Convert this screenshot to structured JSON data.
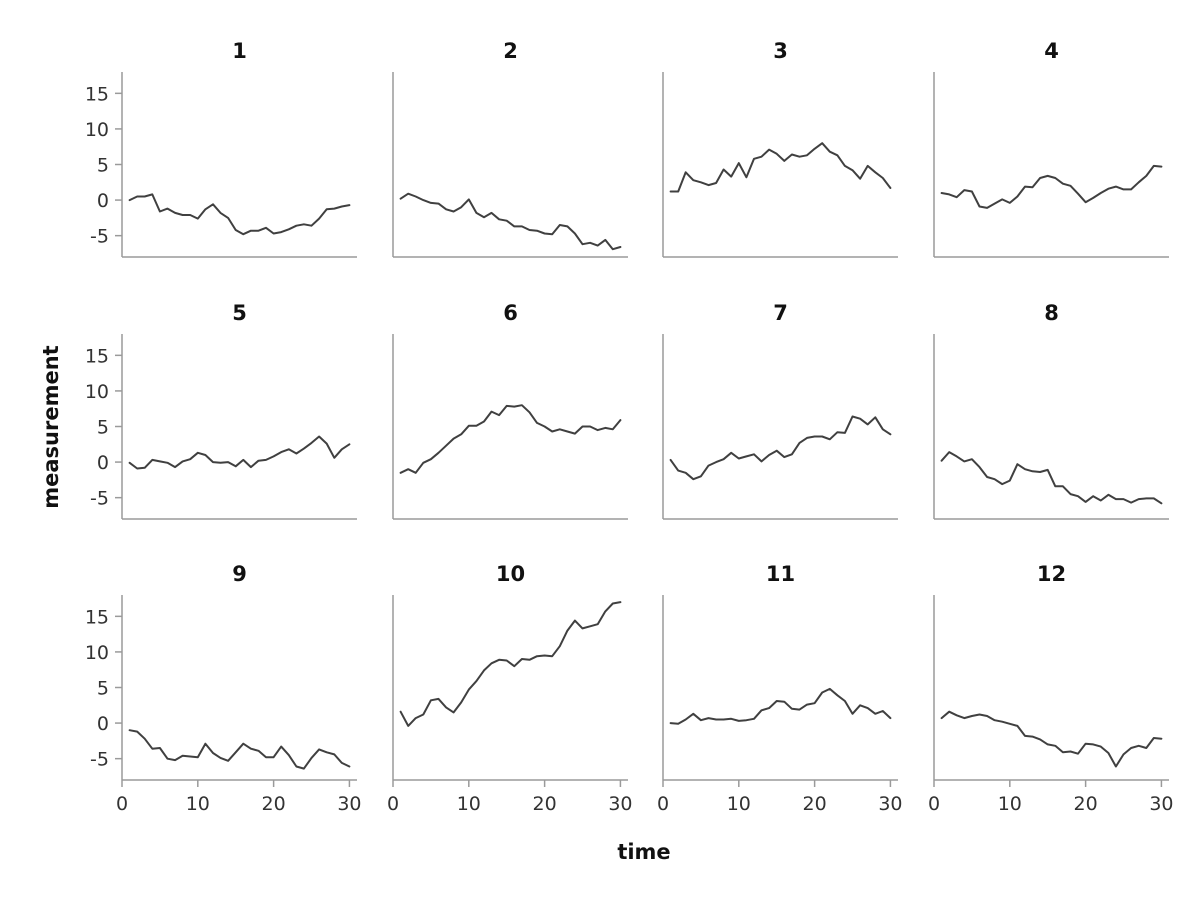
{
  "chart_data": {
    "type": "line",
    "layout": "facet-grid",
    "nrows": 3,
    "ncols": 4,
    "xlabel": "time",
    "ylabel": "measurement",
    "xlim": [
      0,
      31
    ],
    "ylim": [
      -8,
      18
    ],
    "xticks": [
      0,
      10,
      20,
      30
    ],
    "yticks": [
      -5,
      0,
      5,
      10,
      15
    ],
    "grid": false,
    "line_color": "#404040",
    "x": [
      1,
      2,
      3,
      4,
      5,
      6,
      7,
      8,
      9,
      10,
      11,
      12,
      13,
      14,
      15,
      16,
      17,
      18,
      19,
      20,
      21,
      22,
      23,
      24,
      25,
      26,
      27,
      28,
      29,
      30
    ],
    "panels": [
      {
        "title": "1",
        "values": [
          0,
          0.5,
          0.5,
          0.8,
          -1.6,
          -1.2,
          -1.8,
          -2.1,
          -2.1,
          -2.6,
          -1.3,
          -0.6,
          -1.8,
          -2.5,
          -4.2,
          -4.8,
          -4.3,
          -4.3,
          -3.9,
          -4.7,
          -4.5,
          -4.1,
          -3.6,
          -3.4,
          -3.6,
          -2.6,
          -1.3,
          -1.2,
          -0.9,
          -0.7
        ]
      },
      {
        "title": "2",
        "values": [
          0.2,
          0.9,
          0.5,
          0,
          -0.4,
          -0.5,
          -1.3,
          -1.6,
          -1,
          0.1,
          -1.8,
          -2.4,
          -1.8,
          -2.7,
          -2.9,
          -3.7,
          -3.7,
          -4.2,
          -4.3,
          -4.7,
          -4.8,
          -3.5,
          -3.7,
          -4.7,
          -6.2,
          -6,
          -6.4,
          -5.6,
          -6.9,
          -6.6
        ]
      },
      {
        "title": "3",
        "values": [
          1.2,
          1.2,
          3.9,
          2.8,
          2.5,
          2.1,
          2.4,
          4.3,
          3.3,
          5.2,
          3.2,
          5.8,
          6.1,
          7.1,
          6.5,
          5.5,
          6.4,
          6.1,
          6.3,
          7.2,
          8,
          6.8,
          6.3,
          4.8,
          4.2,
          3,
          4.8,
          3.9,
          3.1,
          1.7
        ]
      },
      {
        "title": "4",
        "values": [
          1,
          0.8,
          0.4,
          1.4,
          1.2,
          -0.9,
          -1.1,
          -0.5,
          0.1,
          -0.4,
          0.5,
          1.9,
          1.8,
          3.1,
          3.4,
          3.1,
          2.3,
          2,
          0.9,
          -0.3,
          0.3,
          1,
          1.6,
          1.9,
          1.5,
          1.5,
          2.5,
          3.4,
          4.8,
          4.7
        ]
      },
      {
        "title": "5",
        "values": [
          -0.1,
          -0.9,
          -0.8,
          0.3,
          0.1,
          -0.1,
          -0.7,
          0.1,
          0.4,
          1.3,
          1,
          0,
          -0.1,
          0,
          -0.6,
          0.3,
          -0.7,
          0.2,
          0.3,
          0.8,
          1.4,
          1.8,
          1.2,
          1.9,
          2.7,
          3.6,
          2.6,
          0.6,
          1.8,
          2.5
        ]
      },
      {
        "title": "6",
        "values": [
          -1.5,
          -1,
          -1.5,
          -0.1,
          0.4,
          1.3,
          2.3,
          3.3,
          3.9,
          5.1,
          5.1,
          5.7,
          7.1,
          6.6,
          7.9,
          7.8,
          8,
          7,
          5.5,
          5,
          4.3,
          4.6,
          4.3,
          4,
          5,
          5,
          4.5,
          4.8,
          4.6,
          5.9
        ]
      },
      {
        "title": "7",
        "values": [
          0.3,
          -1.2,
          -1.5,
          -2.4,
          -2,
          -0.5,
          0,
          0.4,
          1.3,
          0.5,
          0.8,
          1.1,
          0.1,
          1,
          1.6,
          0.7,
          1.1,
          2.7,
          3.4,
          3.6,
          3.6,
          3.2,
          4.2,
          4.1,
          6.4,
          6.1,
          5.3,
          6.3,
          4.6,
          3.9
        ]
      },
      {
        "title": "8",
        "values": [
          0.2,
          1.4,
          0.8,
          0.1,
          0.4,
          -0.7,
          -2.1,
          -2.4,
          -3.1,
          -2.6,
          -0.3,
          -1,
          -1.3,
          -1.4,
          -1.1,
          -3.4,
          -3.4,
          -4.5,
          -4.8,
          -5.6,
          -4.8,
          -5.4,
          -4.6,
          -5.2,
          -5.2,
          -5.7,
          -5.2,
          -5.1,
          -5.1,
          -5.8
        ]
      },
      {
        "title": "9",
        "values": [
          -1,
          -1.2,
          -2.2,
          -3.6,
          -3.5,
          -5,
          -5.2,
          -4.6,
          -4.7,
          -4.8,
          -2.9,
          -4.2,
          -4.9,
          -5.3,
          -4.1,
          -2.9,
          -3.6,
          -3.9,
          -4.8,
          -4.8,
          -3.3,
          -4.5,
          -6.1,
          -6.4,
          -4.9,
          -3.7,
          -4.1,
          -4.4,
          -5.6,
          -6.1
        ]
      },
      {
        "title": "10",
        "values": [
          1.6,
          -0.4,
          0.7,
          1.2,
          3.2,
          3.4,
          2.2,
          1.5,
          2.9,
          4.7,
          5.9,
          7.4,
          8.4,
          8.9,
          8.8,
          8,
          9,
          8.9,
          9.4,
          9.5,
          9.4,
          10.8,
          13,
          14.4,
          13.3,
          13.6,
          13.9,
          15.7,
          16.8,
          17
        ]
      },
      {
        "title": "11",
        "values": [
          0,
          -0.1,
          0.5,
          1.3,
          0.4,
          0.7,
          0.5,
          0.5,
          0.6,
          0.3,
          0.4,
          0.6,
          1.8,
          2.1,
          3.1,
          3,
          2,
          1.9,
          2.6,
          2.8,
          4.3,
          4.8,
          3.9,
          3.1,
          1.3,
          2.5,
          2.1,
          1.3,
          1.7,
          0.7
        ]
      },
      {
        "title": "12",
        "values": [
          0.7,
          1.6,
          1.1,
          0.7,
          1,
          1.2,
          1,
          0.4,
          0.2,
          -0.1,
          -0.4,
          -1.8,
          -1.9,
          -2.3,
          -3,
          -3.2,
          -4.1,
          -4,
          -4.3,
          -2.9,
          -3,
          -3.3,
          -4.2,
          -6.1,
          -4.4,
          -3.5,
          -3.2,
          -3.5,
          -2.1,
          -2.2
        ]
      }
    ]
  }
}
